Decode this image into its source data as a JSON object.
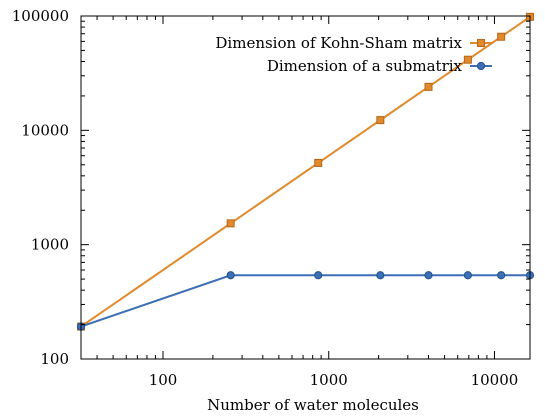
{
  "chart_data": {
    "type": "line",
    "xlabel": "Number of water molecules",
    "ylabel": "",
    "xscale": "log",
    "yscale": "log",
    "xlim": [
      32,
      16384
    ],
    "ylim": [
      100,
      100000
    ],
    "x_ticks": [
      100,
      1000,
      10000
    ],
    "x_tick_labels": [
      "100",
      "1000",
      "10000"
    ],
    "y_ticks": [
      100,
      1000,
      10000,
      100000
    ],
    "y_tick_labels": [
      "100",
      "1000",
      "10000",
      "100000"
    ],
    "grid": false,
    "legend_position": "top-right",
    "series": [
      {
        "name": "Dimension of Kohn-Sham matrix",
        "color": "#e08a2c",
        "marker": "square",
        "x": [
          32,
          256,
          864,
          2048,
          4000,
          6912,
          10976,
          16384
        ],
        "y": [
          192,
          1536,
          5184,
          12288,
          24000,
          41472,
          65856,
          98304
        ]
      },
      {
        "name": "Dimension of a submatrix",
        "color": "#3b6fb6",
        "marker": "circle",
        "x": [
          32,
          256,
          864,
          2048,
          4000,
          6912,
          10976,
          16384
        ],
        "y": [
          192,
          540,
          540,
          540,
          540,
          540,
          540,
          540
        ]
      }
    ]
  }
}
